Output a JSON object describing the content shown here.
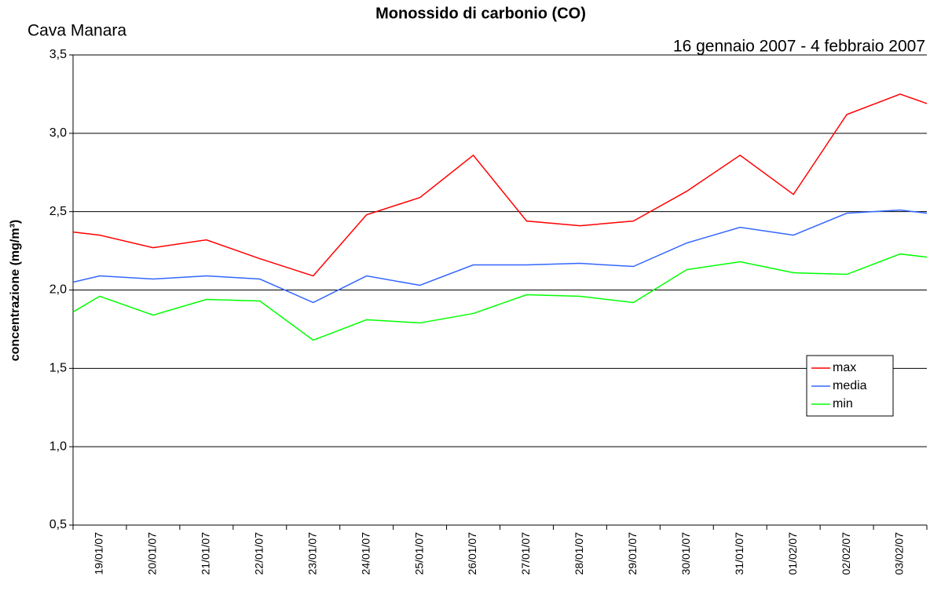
{
  "chart_data": {
    "type": "line",
    "title": "Monossido di carbonio (CO)",
    "subtitle": "Cava Manara",
    "date_range": "16 gennaio 2007 - 4 febbraio 2007",
    "y_label": "concentrazione (mg/m³)",
    "categories": [
      null,
      "19/01/07",
      "20/01/07",
      "21/01/07",
      "22/01/07",
      "23/01/07",
      "24/01/07",
      "25/01/07",
      "26/01/07",
      "27/01/07",
      "28/01/07",
      "29/01/07",
      "30/01/07",
      "31/01/07",
      "01/02/07",
      "02/02/07",
      "03/02/07",
      null
    ],
    "series": [
      {
        "name": "max",
        "color": "#ff0000",
        "values": [
          2.37,
          2.35,
          2.27,
          2.32,
          2.2,
          2.09,
          2.48,
          2.59,
          2.86,
          2.44,
          2.41,
          2.44,
          2.63,
          2.86,
          2.61,
          3.12,
          3.25,
          3.19
        ]
      },
      {
        "name": "media",
        "color": "#3366ff",
        "values": [
          2.05,
          2.09,
          2.07,
          2.09,
          2.07,
          1.92,
          2.09,
          2.03,
          2.16,
          2.16,
          2.17,
          2.15,
          2.3,
          2.4,
          2.35,
          2.49,
          2.51,
          2.49
        ]
      },
      {
        "name": "min",
        "color": "#00ff00",
        "values": [
          1.86,
          1.96,
          1.84,
          1.94,
          1.93,
          1.68,
          1.81,
          1.79,
          1.85,
          1.97,
          1.96,
          1.92,
          2.13,
          2.18,
          2.11,
          2.1,
          2.23,
          2.21
        ]
      }
    ],
    "ylim": [
      0.5,
      3.5
    ],
    "yticks": [
      {
        "value": 0.5,
        "label": "0,5"
      },
      {
        "value": 1.0,
        "label": "1,0"
      },
      {
        "value": 1.5,
        "label": "1,5"
      },
      {
        "value": 2.0,
        "label": "2,0"
      },
      {
        "value": 2.5,
        "label": "2,5"
      },
      {
        "value": 3.0,
        "label": "3,0"
      },
      {
        "value": 3.5,
        "label": "3,5"
      }
    ],
    "grid": true,
    "legend": "right"
  }
}
